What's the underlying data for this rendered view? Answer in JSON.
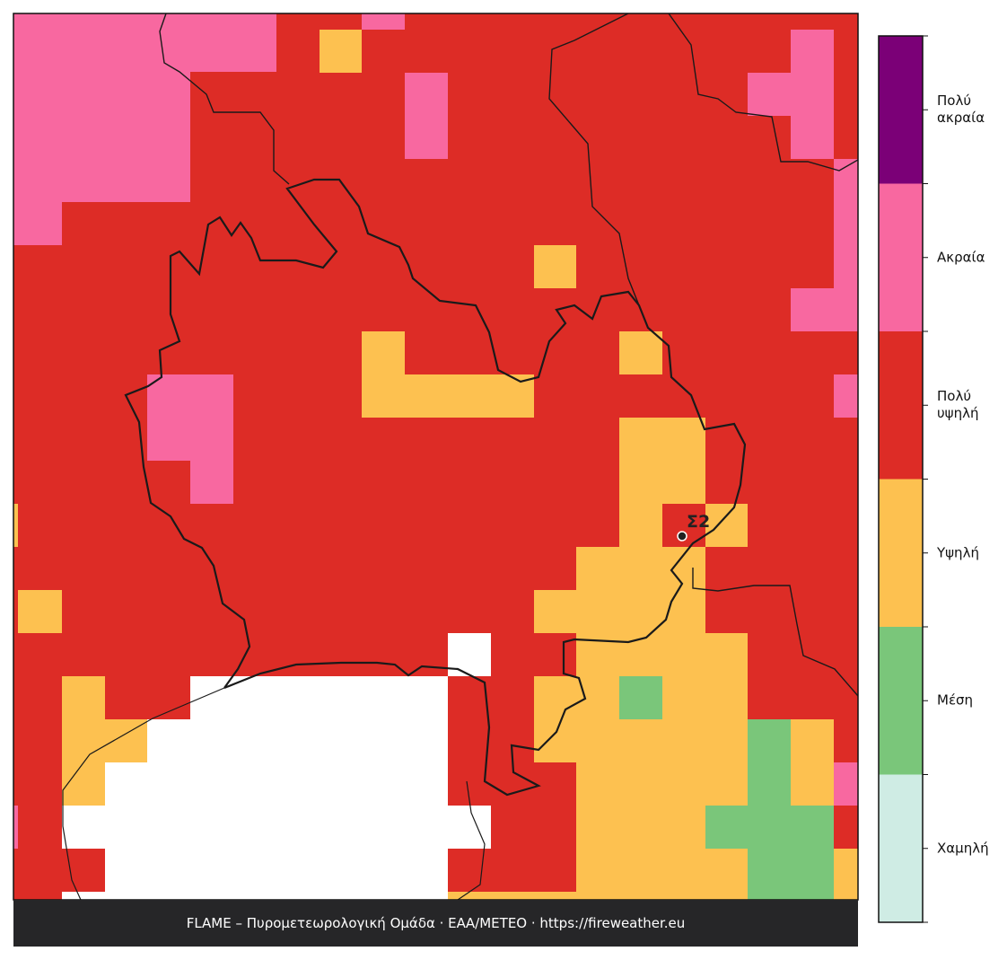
{
  "legend": {
    "levels": [
      {
        "label": "Πολύ\nακραία",
        "color": "#7b0077"
      },
      {
        "label": "Ακραία",
        "color": "#f868a0"
      },
      {
        "label": "Πολύ\nυψηλή",
        "color": "#dd2c26"
      },
      {
        "label": "Υψηλή",
        "color": "#fdc150"
      },
      {
        "label": "Μέση",
        "color": "#7ac67a"
      },
      {
        "label": "Χαμηλή",
        "color": "#cfece4"
      }
    ]
  },
  "station": {
    "label": "Σ2"
  },
  "footer": {
    "text": "FLAME – Πυρομετεωρολογική Ομάδα · ΕΑΑ/METEO · https://fireweather.eu"
  }
}
